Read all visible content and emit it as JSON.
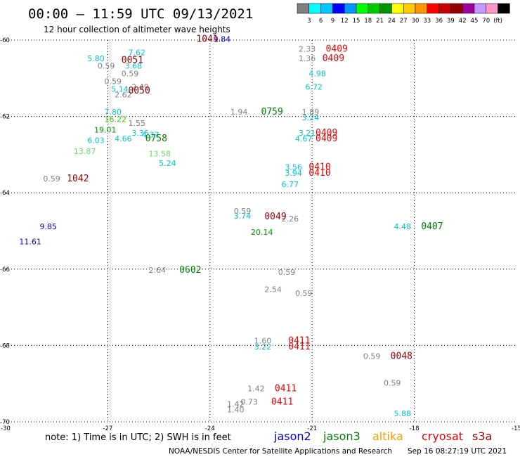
{
  "header": {
    "title": "00:00 – 11:59 UTC 09/13/2021",
    "subtitle": "12 hour collection of altimeter wave heights"
  },
  "colorbar": {
    "colors": [
      "#808080",
      "#00ffff",
      "#00c8ff",
      "#0000ff",
      "#0096ff",
      "#00ff00",
      "#00c800",
      "#009600",
      "#ffff00",
      "#ffc800",
      "#ff9600",
      "#ff0000",
      "#c80000",
      "#960000",
      "#a000a0",
      "#c896ff",
      "#ff96c8",
      "#000000"
    ],
    "labels": [
      "3",
      "6",
      "9",
      "12",
      "15",
      "18",
      "21",
      "24",
      "27",
      "30",
      "33",
      "36",
      "39",
      "42",
      "45",
      "70",
      "(ft)"
    ]
  },
  "note": "note: 1) Time is in UTC; 2) SWH is in feet",
  "satellites": [
    {
      "name": "jason2",
      "color": "#0000cc"
    },
    {
      "name": "jason3",
      "color": "#008000"
    },
    {
      "name": "altika",
      "color": "#ff9900"
    },
    {
      "name": "cryosat",
      "color": "#ee0000"
    },
    {
      "name": "s3a",
      "color": "#990000"
    }
  ],
  "footer": {
    "source": "NOAA/NESDIS Center for Satellite Applications and Research",
    "timestamp": "Sep 16 08:27:19 UTC 2021"
  },
  "chart_data": {
    "type": "scatter",
    "title": "00:00 – 11:59 UTC 09/13/2021",
    "x_ticks": [
      -30,
      -27,
      -24,
      -21,
      -18,
      -15
    ],
    "y_ticks": [
      -60,
      -62,
      -64,
      -66,
      -68,
      -70
    ],
    "xlim": [
      -30,
      -15
    ],
    "ylim": [
      -70,
      -60
    ],
    "grid": true,
    "values": [
      {
        "lon": -23.9,
        "lat": -60.05,
        "text": "9.84",
        "color": "#0000cc"
      },
      {
        "lon": -26.4,
        "lat": -60.4,
        "text": "7.62",
        "color": "#00c8c8"
      },
      {
        "lon": -27.6,
        "lat": -60.55,
        "text": "5.80",
        "color": "#00c8c8"
      },
      {
        "lon": -27.3,
        "lat": -60.75,
        "text": "0.59",
        "color": "#808080"
      },
      {
        "lon": -26.5,
        "lat": -60.75,
        "text": "3.68",
        "color": "#00c8c8"
      },
      {
        "lon": -26.6,
        "lat": -60.95,
        "text": "0.59",
        "color": "#808080"
      },
      {
        "lon": -27.1,
        "lat": -61.15,
        "text": "0.59",
        "color": "#808080"
      },
      {
        "lon": -26.9,
        "lat": -61.35,
        "text": "5.14",
        "color": "#00c8c8"
      },
      {
        "lon": -26.3,
        "lat": -61.3,
        "text": "2.49",
        "color": "#808080"
      },
      {
        "lon": -26.8,
        "lat": -61.5,
        "text": "2.62",
        "color": "#808080"
      },
      {
        "lon": -27.1,
        "lat": -61.95,
        "text": "7.80",
        "color": "#00c8c8"
      },
      {
        "lon": -27.1,
        "lat": -62.15,
        "text": "16.22",
        "color": "#33cc00"
      },
      {
        "lon": -26.4,
        "lat": -62.25,
        "text": "1.55",
        "color": "#808080"
      },
      {
        "lon": -27.4,
        "lat": -62.42,
        "text": "19.01",
        "color": "#009600"
      },
      {
        "lon": -26.3,
        "lat": -62.5,
        "text": "3.36",
        "color": "#00c8c8"
      },
      {
        "lon": -26.0,
        "lat": -62.55,
        "text": "4.37",
        "color": "#00c8c8"
      },
      {
        "lon": -26.8,
        "lat": -62.65,
        "text": "4.66",
        "color": "#00c8c8"
      },
      {
        "lon": -27.6,
        "lat": -62.7,
        "text": "6.03",
        "color": "#00c8c8"
      },
      {
        "lon": -28.0,
        "lat": -62.98,
        "text": "13.87",
        "color": "#66e066"
      },
      {
        "lon": -25.8,
        "lat": -63.05,
        "text": "13.58",
        "color": "#66e066"
      },
      {
        "lon": -25.5,
        "lat": -63.3,
        "text": "5.24",
        "color": "#00c8c8"
      },
      {
        "lon": -28.9,
        "lat": -63.7,
        "text": "0.59",
        "color": "#808080"
      },
      {
        "lon": -29.0,
        "lat": -64.95,
        "text": "9.85",
        "color": "#0000cc"
      },
      {
        "lon": -29.6,
        "lat": -65.35,
        "text": "11.61",
        "color": "#0000cc"
      },
      {
        "lon": -25.8,
        "lat": -66.1,
        "text": "2.64",
        "color": "#808080"
      },
      {
        "lon": -23.4,
        "lat": -61.95,
        "text": "1.94",
        "color": "#808080"
      },
      {
        "lon": -23.3,
        "lat": -64.55,
        "text": "0.59",
        "color": "#808080"
      },
      {
        "lon": -23.3,
        "lat": -64.68,
        "text": "3.74",
        "color": "#00c8c8"
      },
      {
        "lon": -22.8,
        "lat": -65.1,
        "text": "20.14",
        "color": "#009600"
      },
      {
        "lon": -21.9,
        "lat": -64.75,
        "text": "2.26",
        "color": "#808080"
      },
      {
        "lon": -22.0,
        "lat": -66.15,
        "text": "0.59",
        "color": "#808080"
      },
      {
        "lon": -22.4,
        "lat": -66.6,
        "text": "2.54",
        "color": "#808080"
      },
      {
        "lon": -21.5,
        "lat": -66.7,
        "text": "0.59",
        "color": "#808080"
      },
      {
        "lon": -22.7,
        "lat": -67.95,
        "text": "1.60",
        "color": "#808080"
      },
      {
        "lon": -22.7,
        "lat": -68.1,
        "text": "3.22",
        "color": "#00c8c8"
      },
      {
        "lon": -22.9,
        "lat": -69.2,
        "text": "1.42",
        "color": "#808080"
      },
      {
        "lon": -23.1,
        "lat": -69.55,
        "text": "0.73",
        "color": "#808080"
      },
      {
        "lon": -23.5,
        "lat": -69.6,
        "text": "1.42",
        "color": "#808080"
      },
      {
        "lon": -23.5,
        "lat": -69.75,
        "text": "1.40",
        "color": "#808080"
      },
      {
        "lon": -21.4,
        "lat": -60.3,
        "text": "2.33",
        "color": "#808080"
      },
      {
        "lon": -21.4,
        "lat": -60.55,
        "text": "1.36",
        "color": "#808080"
      },
      {
        "lon": -21.1,
        "lat": -60.95,
        "text": "4.98",
        "color": "#00c8c8"
      },
      {
        "lon": -21.2,
        "lat": -61.3,
        "text": "6.72",
        "color": "#00c8c8"
      },
      {
        "lon": -21.3,
        "lat": -61.95,
        "text": "1.89",
        "color": "#808080"
      },
      {
        "lon": -21.3,
        "lat": -62.1,
        "text": "3.24",
        "color": "#00c8c8"
      },
      {
        "lon": -21.4,
        "lat": -62.5,
        "text": "3.21",
        "color": "#00c8c8"
      },
      {
        "lon": -21.5,
        "lat": -62.65,
        "text": "4.67",
        "color": "#00c8c8"
      },
      {
        "lon": -21.8,
        "lat": -63.4,
        "text": "3.56",
        "color": "#00c8c8"
      },
      {
        "lon": -21.8,
        "lat": -63.55,
        "text": "3.94",
        "color": "#00c8c8"
      },
      {
        "lon": -21.9,
        "lat": -63.85,
        "text": "6.77",
        "color": "#00c8c8"
      },
      {
        "lon": -18.6,
        "lat": -64.95,
        "text": "4.48",
        "color": "#00c8c8"
      },
      {
        "lon": -19.5,
        "lat": -68.35,
        "text": "0.59",
        "color": "#808080"
      },
      {
        "lon": -18.9,
        "lat": -69.05,
        "text": "0.59",
        "color": "#808080"
      },
      {
        "lon": -18.6,
        "lat": -69.85,
        "text": "5.88",
        "color": "#00c8c8"
      }
    ],
    "annotations": [
      {
        "lon": -24.4,
        "lat": -60.05,
        "text": "1041",
        "color": "#990000"
      },
      {
        "lon": -26.6,
        "lat": -60.6,
        "text": "0051",
        "color": "#990000"
      },
      {
        "lon": -26.4,
        "lat": -61.4,
        "text": "0050",
        "color": "#990000"
      },
      {
        "lon": -25.9,
        "lat": -62.65,
        "text": "0758",
        "color": "#008000"
      },
      {
        "lon": -28.2,
        "lat": -63.7,
        "text": "1042",
        "color": "#990000"
      },
      {
        "lon": -24.9,
        "lat": -66.1,
        "text": "0602",
        "color": "#008000"
      },
      {
        "lon": -22.5,
        "lat": -61.95,
        "text": "0759",
        "color": "#008000"
      },
      {
        "lon": -22.4,
        "lat": -64.7,
        "text": "0049",
        "color": "#990000"
      },
      {
        "lon": -21.7,
        "lat": -67.95,
        "text": "0411",
        "color": "#ee0000"
      },
      {
        "lon": -21.7,
        "lat": -68.1,
        "text": "0411",
        "color": "#ee0000"
      },
      {
        "lon": -22.1,
        "lat": -69.2,
        "text": "0411",
        "color": "#ee0000"
      },
      {
        "lon": -22.2,
        "lat": -69.55,
        "text": "0411",
        "color": "#ee0000"
      },
      {
        "lon": -20.6,
        "lat": -60.3,
        "text": "0409",
        "color": "#ee0000"
      },
      {
        "lon": -20.7,
        "lat": -60.55,
        "text": "0409",
        "color": "#ee0000"
      },
      {
        "lon": -20.9,
        "lat": -62.5,
        "text": "0409",
        "color": "#ee0000"
      },
      {
        "lon": -20.9,
        "lat": -62.65,
        "text": "0409",
        "color": "#ee0000"
      },
      {
        "lon": -21.1,
        "lat": -63.4,
        "text": "0410",
        "color": "#ee0000"
      },
      {
        "lon": -21.1,
        "lat": -63.55,
        "text": "0410",
        "color": "#ee0000"
      },
      {
        "lon": -17.8,
        "lat": -64.95,
        "text": "0407",
        "color": "#008000"
      },
      {
        "lon": -18.7,
        "lat": -68.35,
        "text": "0048",
        "color": "#990000"
      }
    ]
  }
}
